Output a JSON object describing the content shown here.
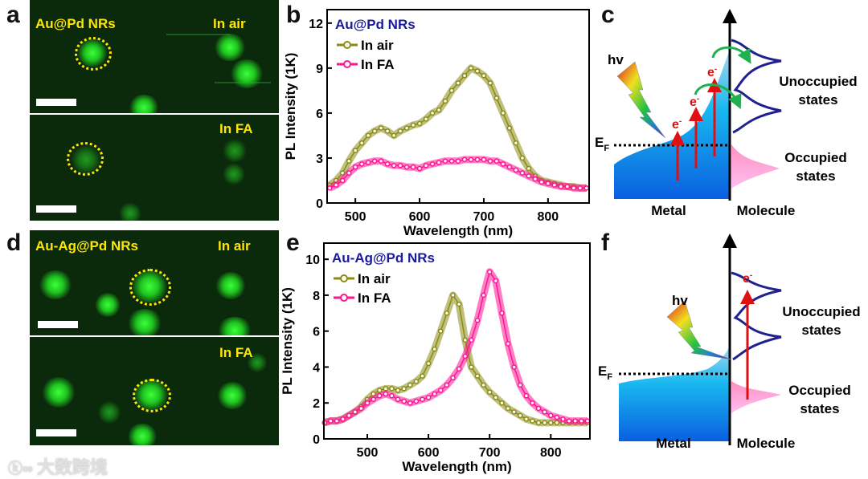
{
  "panels": {
    "a": "a",
    "b": "b",
    "c": "c",
    "d": "d",
    "e": "e",
    "f": "f"
  },
  "micro_a": {
    "title": "Au@Pd NRs",
    "top_label": "In air",
    "bottom_label": "In FA"
  },
  "micro_d": {
    "title": "Au-Ag@Pd NRs",
    "top_label": "In air",
    "bottom_label": "In FA"
  },
  "diagram_c": {
    "hv": "hv",
    "ef": "E",
    "ef_sub": "F",
    "e": "e",
    "e_sup": "-",
    "unocc1": "Unoccupied",
    "unocc2": "states",
    "occ1": "Occupied",
    "occ2": "states",
    "metal": "Metal",
    "molecule": "Molecule"
  },
  "diagram_f": {
    "hv": "hv",
    "ef": "E",
    "ef_sub": "F",
    "e": "e",
    "e_sup": "-",
    "unocc1": "Unoccupied",
    "unocc2": "states",
    "occ1": "Occupied",
    "occ2": "states",
    "metal": "Metal",
    "molecule": "Molecule"
  },
  "watermark": "大数跨境",
  "colors": {
    "air": "#8b8b14",
    "fa": "#ff1493",
    "title": "#1a1a9c"
  },
  "chart_data": [
    {
      "type": "line",
      "title": "Au@Pd NRs",
      "xlabel": "Wavelength (nm)",
      "ylabel": "PL Intensity (1K)",
      "xlim": [
        456,
        864
      ],
      "ylim": [
        0,
        12.9
      ],
      "xticks": [
        500,
        600,
        700,
        800
      ],
      "yticks": [
        0,
        3,
        6,
        9,
        12
      ],
      "legend": "top-left",
      "x": [
        460,
        470,
        480,
        490,
        500,
        510,
        520,
        530,
        540,
        550,
        560,
        570,
        580,
        590,
        600,
        610,
        620,
        630,
        640,
        650,
        660,
        670,
        680,
        690,
        700,
        710,
        720,
        730,
        740,
        750,
        760,
        770,
        780,
        790,
        800,
        810,
        820,
        830,
        840,
        850,
        860
      ],
      "series": [
        {
          "name": "In air",
          "values": [
            1.2,
            1.5,
            2.0,
            2.8,
            3.5,
            4.0,
            4.5,
            4.8,
            5.0,
            4.8,
            4.5,
            4.8,
            5.0,
            5.2,
            5.3,
            5.6,
            6.0,
            6.2,
            6.8,
            7.5,
            8.0,
            8.5,
            9.0,
            8.8,
            8.5,
            8.0,
            7.0,
            6.0,
            5.0,
            4.0,
            3.0,
            2.3,
            1.8,
            1.5,
            1.4,
            1.3,
            1.2,
            1.1,
            1.1,
            1.0,
            1.0
          ]
        },
        {
          "name": "In FA",
          "values": [
            1.0,
            1.2,
            1.5,
            2.0,
            2.4,
            2.6,
            2.7,
            2.8,
            2.8,
            2.6,
            2.5,
            2.5,
            2.4,
            2.4,
            2.3,
            2.5,
            2.6,
            2.7,
            2.8,
            2.8,
            2.8,
            2.9,
            2.9,
            2.9,
            2.9,
            2.8,
            2.8,
            2.6,
            2.4,
            2.2,
            2.0,
            1.8,
            1.6,
            1.4,
            1.3,
            1.2,
            1.1,
            1.1,
            1.0,
            1.0,
            1.0
          ]
        }
      ]
    },
    {
      "type": "line",
      "title": "Au-Ag@Pd NRs",
      "xlabel": "Wavelength (nm)",
      "ylabel": "PL Intensity (1K)",
      "xlim": [
        429,
        864
      ],
      "ylim": [
        0,
        10.9
      ],
      "xticks": [
        500,
        600,
        700,
        800
      ],
      "yticks": [
        0,
        2,
        4,
        6,
        8,
        10
      ],
      "legend": "top-left",
      "x": [
        430,
        440,
        450,
        460,
        470,
        480,
        490,
        500,
        510,
        520,
        530,
        540,
        550,
        560,
        570,
        580,
        590,
        600,
        610,
        620,
        630,
        640,
        650,
        660,
        670,
        680,
        690,
        700,
        710,
        720,
        730,
        740,
        750,
        760,
        770,
        780,
        790,
        800,
        810,
        820,
        830,
        840,
        850,
        860
      ],
      "series": [
        {
          "name": "In air",
          "values": [
            0.9,
            1.0,
            1.0,
            1.1,
            1.3,
            1.5,
            1.8,
            2.2,
            2.5,
            2.7,
            2.8,
            2.8,
            2.7,
            2.8,
            3.0,
            3.2,
            3.5,
            4.2,
            5.0,
            6.0,
            7.0,
            8.0,
            7.5,
            5.5,
            4.0,
            3.5,
            3.0,
            2.6,
            2.3,
            2.0,
            1.7,
            1.5,
            1.3,
            1.1,
            1.0,
            0.9,
            0.9,
            0.9,
            0.9,
            0.9,
            0.9,
            0.9,
            0.9,
            0.9
          ]
        },
        {
          "name": "In FA",
          "values": [
            0.9,
            1.0,
            1.0,
            1.1,
            1.3,
            1.5,
            1.7,
            2.0,
            2.2,
            2.4,
            2.5,
            2.4,
            2.2,
            2.1,
            2.0,
            2.1,
            2.2,
            2.3,
            2.5,
            2.7,
            3.0,
            3.4,
            3.9,
            4.6,
            5.5,
            6.6,
            8.0,
            9.3,
            8.8,
            7.0,
            5.3,
            4.0,
            3.0,
            2.4,
            2.0,
            1.7,
            1.5,
            1.3,
            1.2,
            1.1,
            1.0,
            1.0,
            1.0,
            1.0
          ]
        }
      ]
    }
  ]
}
